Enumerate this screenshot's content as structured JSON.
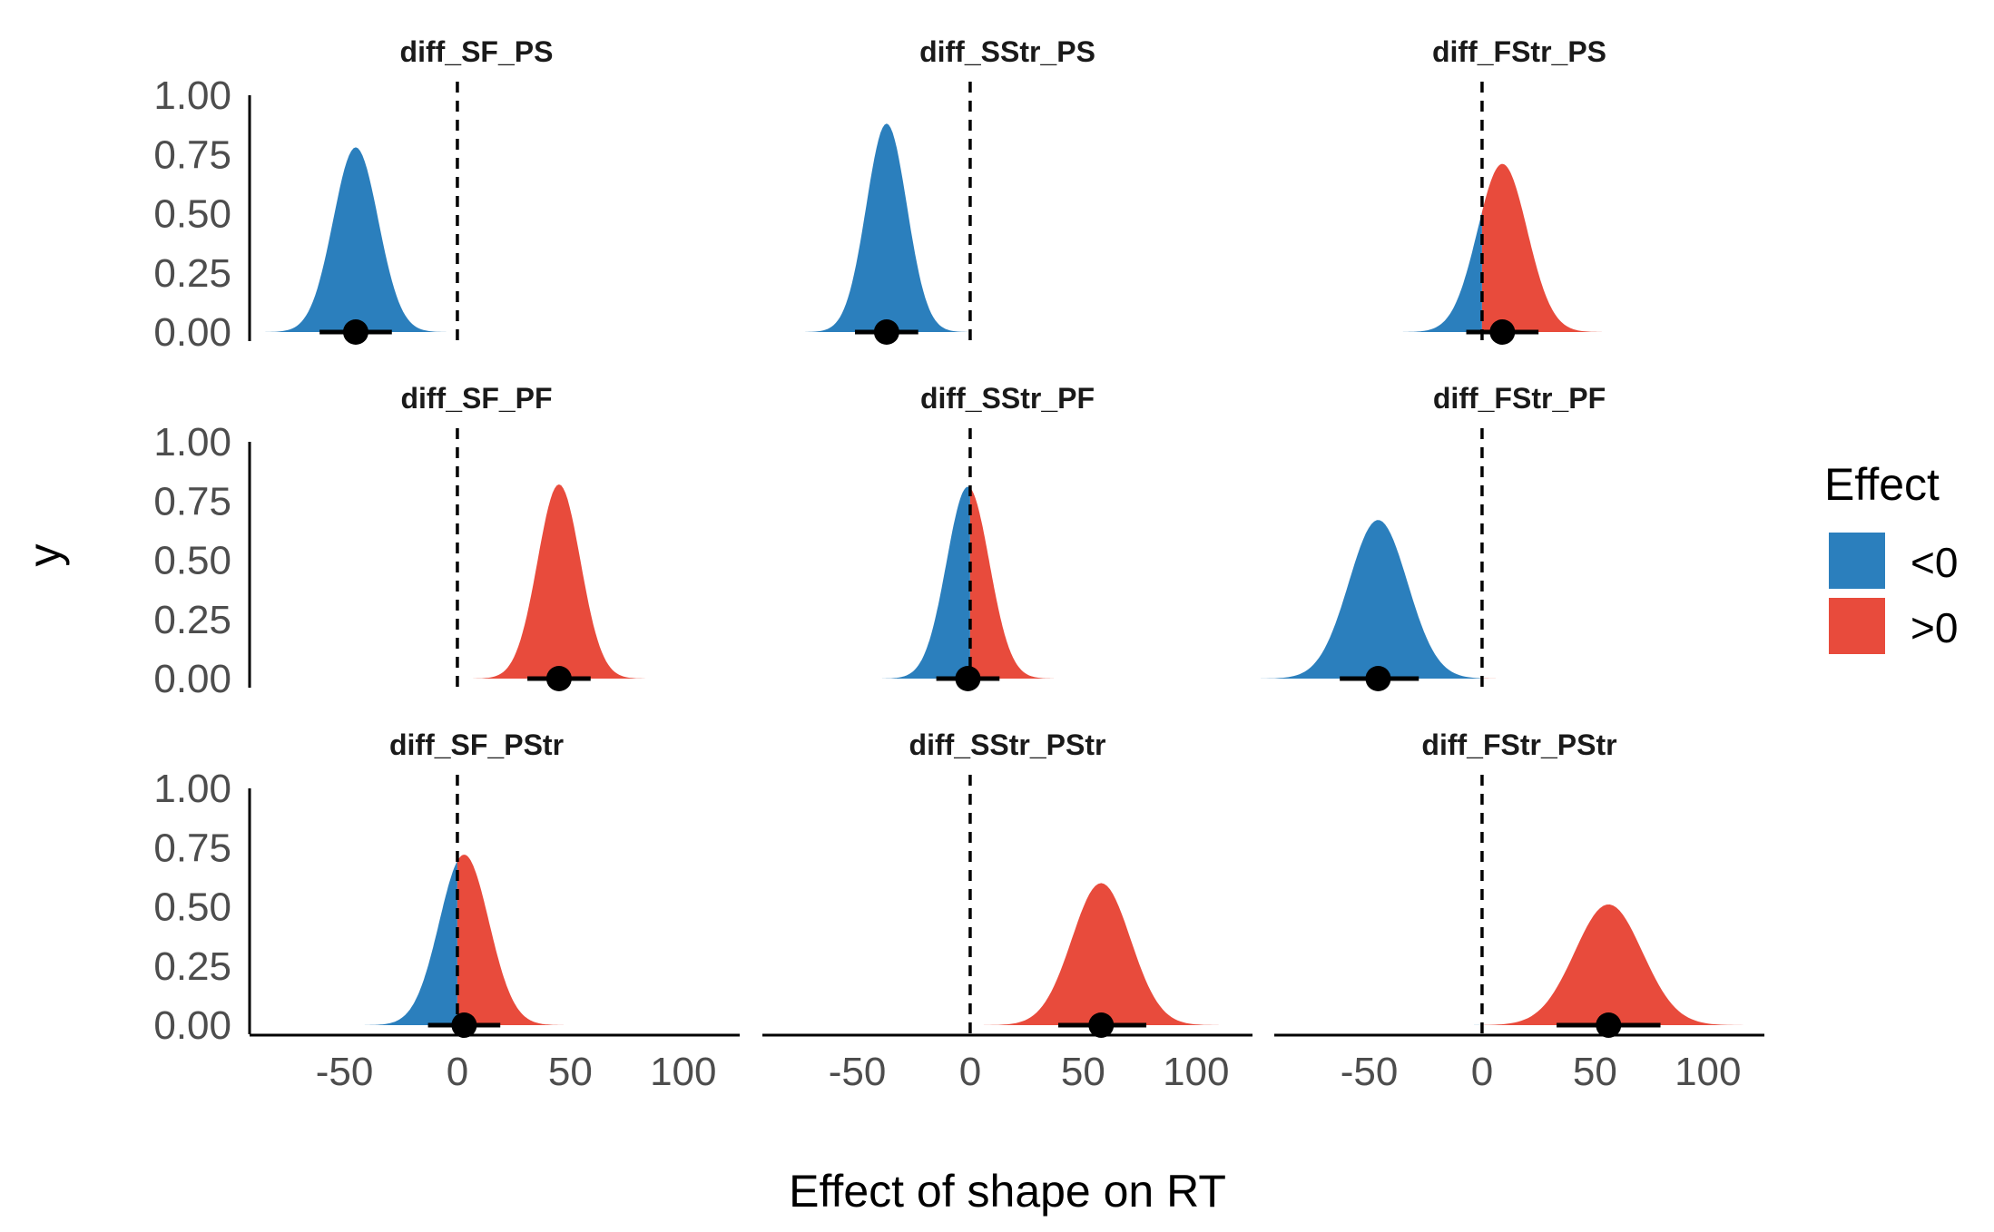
{
  "chart_data": {
    "type": "area",
    "layout": "3x3 facet grid of posterior density slabs with point + interval",
    "xlabel": "Effect of shape on RT",
    "ylabel": "y",
    "xlim": [
      -92,
      125
    ],
    "ylim": [
      0,
      1.0
    ],
    "x_ticks": [
      "-50",
      "0",
      "50",
      "100"
    ],
    "y_ticks": [
      "0.00",
      "0.25",
      "0.50",
      "0.75",
      "1.00"
    ],
    "reference_line_x": 0,
    "reference_line_style": "dashed",
    "grid": false,
    "legend": {
      "title": "Effect",
      "position": "right",
      "entries": [
        {
          "label": "<0",
          "color": "#2b7fbd"
        },
        {
          "label": ">0",
          "color": "#e84b3c"
        }
      ]
    },
    "panels": [
      {
        "title": "diff_SF_PS",
        "mean": -45,
        "sd": 10,
        "peak": 0.78,
        "point": -45,
        "interval": [
          -61,
          -29
        ]
      },
      {
        "title": "diff_SStr_PS",
        "mean": -37,
        "sd": 9,
        "peak": 0.88,
        "point": -37,
        "interval": [
          -51,
          -23
        ]
      },
      {
        "title": "diff_FStr_PS",
        "mean": 9,
        "sd": 11,
        "peak": 0.71,
        "point": 9,
        "interval": [
          -7,
          25
        ]
      },
      {
        "title": "diff_SF_PF",
        "mean": 45,
        "sd": 9.5,
        "peak": 0.82,
        "point": 45,
        "interval": [
          31,
          59
        ]
      },
      {
        "title": "diff_SStr_PF",
        "mean": -1,
        "sd": 9.5,
        "peak": 0.81,
        "point": -1,
        "interval": [
          -15,
          13
        ]
      },
      {
        "title": "diff_FStr_PF",
        "mean": -46,
        "sd": 13,
        "peak": 0.67,
        "point": -46,
        "interval": [
          -63,
          -28
        ]
      },
      {
        "title": "diff_SF_PStr",
        "mean": 3,
        "sd": 11,
        "peak": 0.72,
        "point": 3,
        "interval": [
          -13,
          19
        ]
      },
      {
        "title": "diff_SStr_PStr",
        "mean": 58,
        "sd": 13,
        "peak": 0.6,
        "point": 58,
        "interval": [
          39,
          78
        ]
      },
      {
        "title": "diff_FStr_PStr",
        "mean": 56,
        "sd": 15,
        "peak": 0.51,
        "point": 56,
        "interval": [
          33,
          79
        ]
      }
    ]
  }
}
